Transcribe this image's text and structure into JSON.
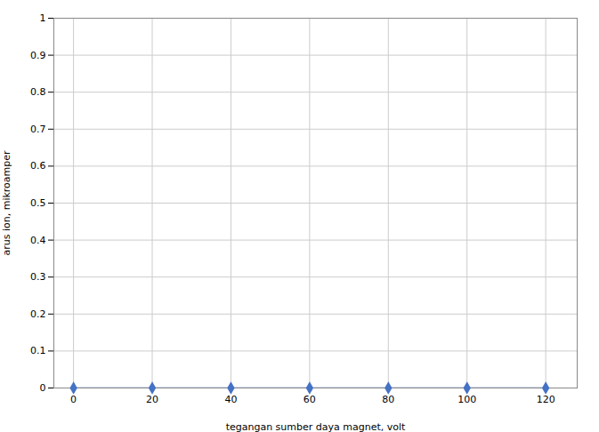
{
  "chart_data": {
    "type": "line",
    "x": [
      0,
      20,
      40,
      60,
      80,
      100,
      120
    ],
    "values": [
      0,
      0,
      0,
      0,
      0,
      0,
      0
    ],
    "xlabel": "tegangan sumber daya magnet, volt",
    "ylabel": "arus ion, mikroamper",
    "xlim": [
      -5,
      128
    ],
    "ylim": [
      0,
      1
    ],
    "xticks": [
      0,
      20,
      40,
      60,
      80,
      100,
      120
    ],
    "yticks": [
      0,
      0.1,
      0.2,
      0.3,
      0.4,
      0.5,
      0.6,
      0.7,
      0.8,
      0.9,
      1
    ],
    "color": "#4472C4",
    "marker": "diamond",
    "grid": true
  }
}
